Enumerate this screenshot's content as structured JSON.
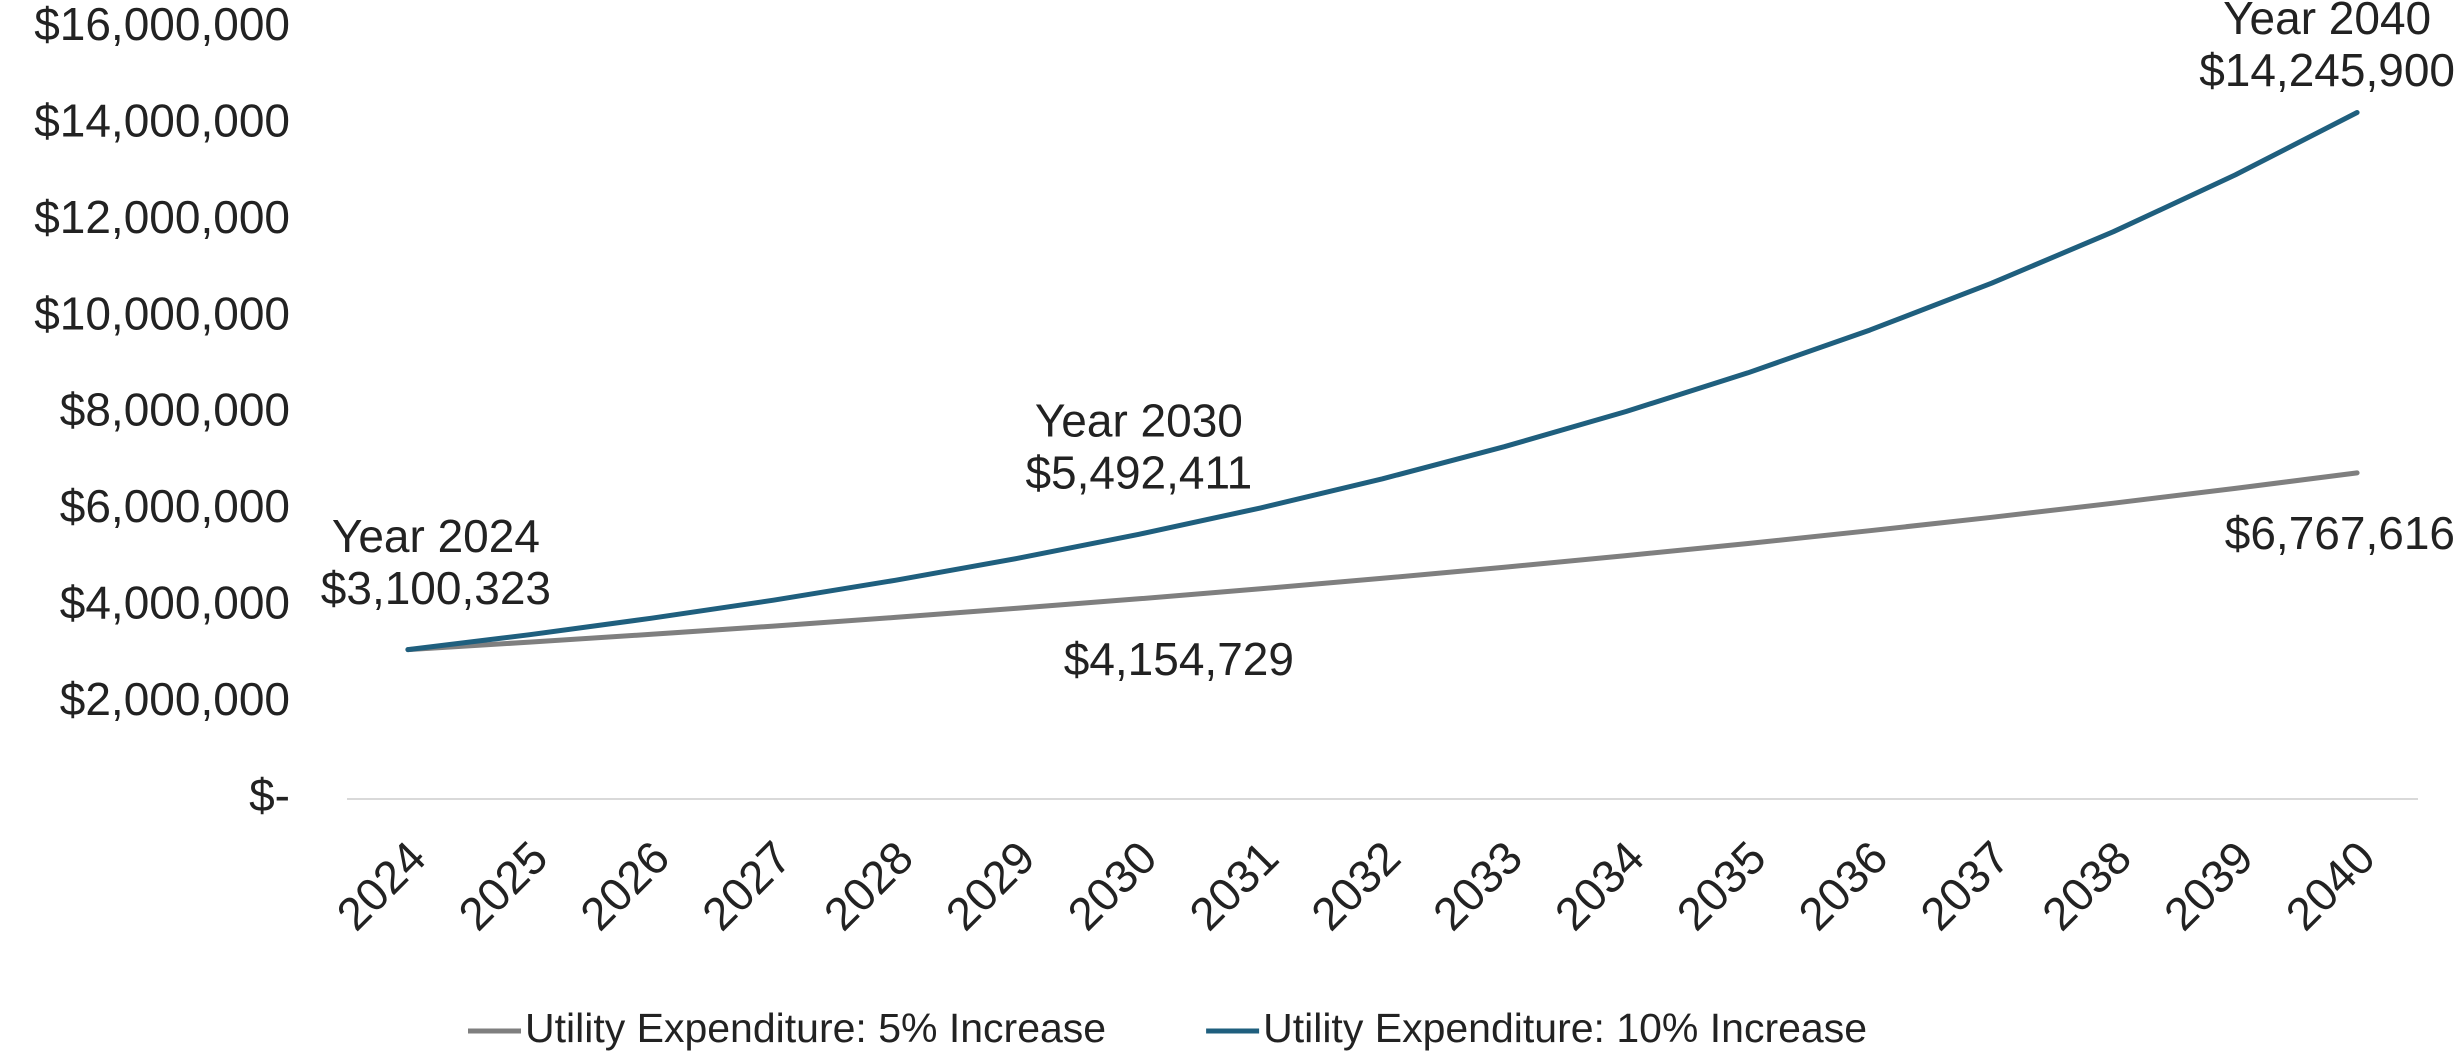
{
  "chart_data": {
    "type": "line",
    "categories": [
      "2024",
      "2025",
      "2026",
      "2027",
      "2028",
      "2029",
      "2030",
      "2031",
      "2032",
      "2033",
      "2034",
      "2035",
      "2036",
      "2037",
      "2038",
      "2039",
      "2040"
    ],
    "series": [
      {
        "name": "Utility Expenditure: 5% Increase",
        "color": "#7f7f7f",
        "values": [
          3100323,
          3255339,
          3418106,
          3589011,
          3768462,
          3956885,
          4154729,
          4362466,
          4580589,
          4809618,
          5050099,
          5302604,
          5567734,
          5846121,
          6138427,
          6445348,
          6767616
        ],
        "value_labels": [
          null,
          null,
          null,
          null,
          null,
          null,
          "$4,154,729",
          null,
          null,
          null,
          null,
          null,
          null,
          null,
          null,
          null,
          "$6,767,616"
        ]
      },
      {
        "name": "Utility Expenditure: 10% Increase",
        "color": "#1f5f7e",
        "values": [
          3100323,
          3410355,
          3751391,
          4126530,
          4539183,
          4993101,
          5492411,
          6041652,
          6645817,
          7310399,
          8041439,
          8845583,
          9730141,
          10703155,
          11773471,
          12950818,
          14245900
        ],
        "value_labels": [
          "$3,100,323",
          null,
          null,
          null,
          null,
          null,
          "$5,492,411",
          null,
          null,
          null,
          null,
          null,
          null,
          null,
          null,
          null,
          "$14,245,900"
        ]
      }
    ],
    "annotations": [
      "Year 2024",
      "Year 2030",
      "Year 2040"
    ],
    "ylim": [
      0,
      16000000
    ],
    "yticks": [
      {
        "value": 0,
        "label": "$-"
      },
      {
        "value": 2000000,
        "label": "$2,000,000"
      },
      {
        "value": 4000000,
        "label": "$4,000,000"
      },
      {
        "value": 6000000,
        "label": "$6,000,000"
      },
      {
        "value": 8000000,
        "label": "$8,000,000"
      },
      {
        "value": 10000000,
        "label": "$10,000,000"
      },
      {
        "value": 12000000,
        "label": "$12,000,000"
      },
      {
        "value": 14000000,
        "label": "$14,000,000"
      },
      {
        "value": 16000000,
        "label": "$16,000,000"
      }
    ],
    "grid": false,
    "legend": "bottom"
  }
}
